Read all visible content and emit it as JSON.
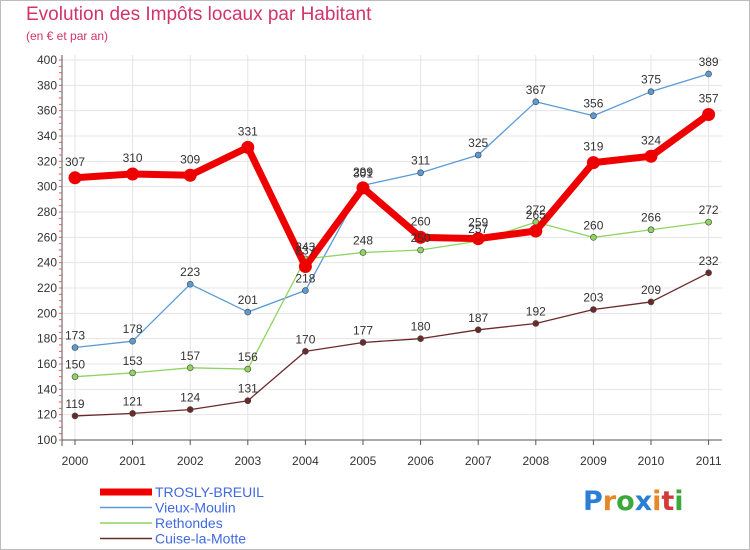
{
  "header": {
    "title": "Evolution des Impôts locaux par Habitant",
    "subtitle": "(en € et par an)"
  },
  "logo": {
    "letters": [
      "P",
      "r",
      "o",
      "x",
      "i",
      "t",
      "i"
    ],
    "colors": [
      "#2a7fd4",
      "#e8862a",
      "#3aa83a",
      "#2a7fd4",
      "#e8862a",
      "#d23a3a",
      "#3aa83a"
    ]
  },
  "chart_data": {
    "type": "line",
    "title": "Evolution des Impôts locaux par Habitant",
    "subtitle": "(en € et par an)",
    "xlabel": "",
    "ylabel": "",
    "x": [
      "2000",
      "2001",
      "2002",
      "2003",
      "2004",
      "2005",
      "2006",
      "2007",
      "2008",
      "2009",
      "2010",
      "2011"
    ],
    "ylim": [
      100,
      400
    ],
    "yticks": [
      100,
      120,
      140,
      160,
      180,
      200,
      220,
      240,
      260,
      280,
      300,
      320,
      340,
      360,
      380,
      400
    ],
    "grid": true,
    "legend_position": "bottom-left",
    "series": [
      {
        "name": "TROSLY-BREUIL",
        "color": "#ee0000",
        "emphasis": true,
        "values": [
          307,
          310,
          309,
          331,
          237,
          299,
          260,
          259,
          265,
          319,
          324,
          357
        ],
        "labels": [
          "307",
          "310",
          "309",
          "331",
          "237",
          "299",
          "260",
          "259",
          "265",
          "319",
          "324",
          "357"
        ]
      },
      {
        "name": "Vieux-Moulin",
        "color": "#5b9bd5",
        "emphasis": false,
        "values": [
          173,
          178,
          223,
          201,
          218,
          301,
          311,
          325,
          367,
          356,
          375,
          389
        ],
        "labels": [
          "173",
          "178",
          "223",
          "201",
          "218",
          "301",
          "311",
          "325",
          "367",
          "356",
          "375",
          "389"
        ]
      },
      {
        "name": "Rethondes",
        "color": "#8fd460",
        "emphasis": false,
        "values": [
          150,
          153,
          157,
          156,
          243,
          248,
          250,
          257,
          272,
          260,
          266,
          272
        ],
        "labels": [
          "150",
          "153",
          "157",
          "156",
          "243",
          "248",
          "250",
          "257",
          "272",
          "260",
          "266",
          "272"
        ]
      },
      {
        "name": "Cuise-la-Motte",
        "color": "#6b2a2a",
        "emphasis": false,
        "values": [
          119,
          121,
          124,
          131,
          170,
          177,
          180,
          187,
          192,
          203,
          209,
          232
        ],
        "labels": [
          "119",
          "121",
          "124",
          "131",
          "170",
          "177",
          "180",
          "187",
          "192",
          "203",
          "209",
          "232"
        ]
      }
    ]
  }
}
